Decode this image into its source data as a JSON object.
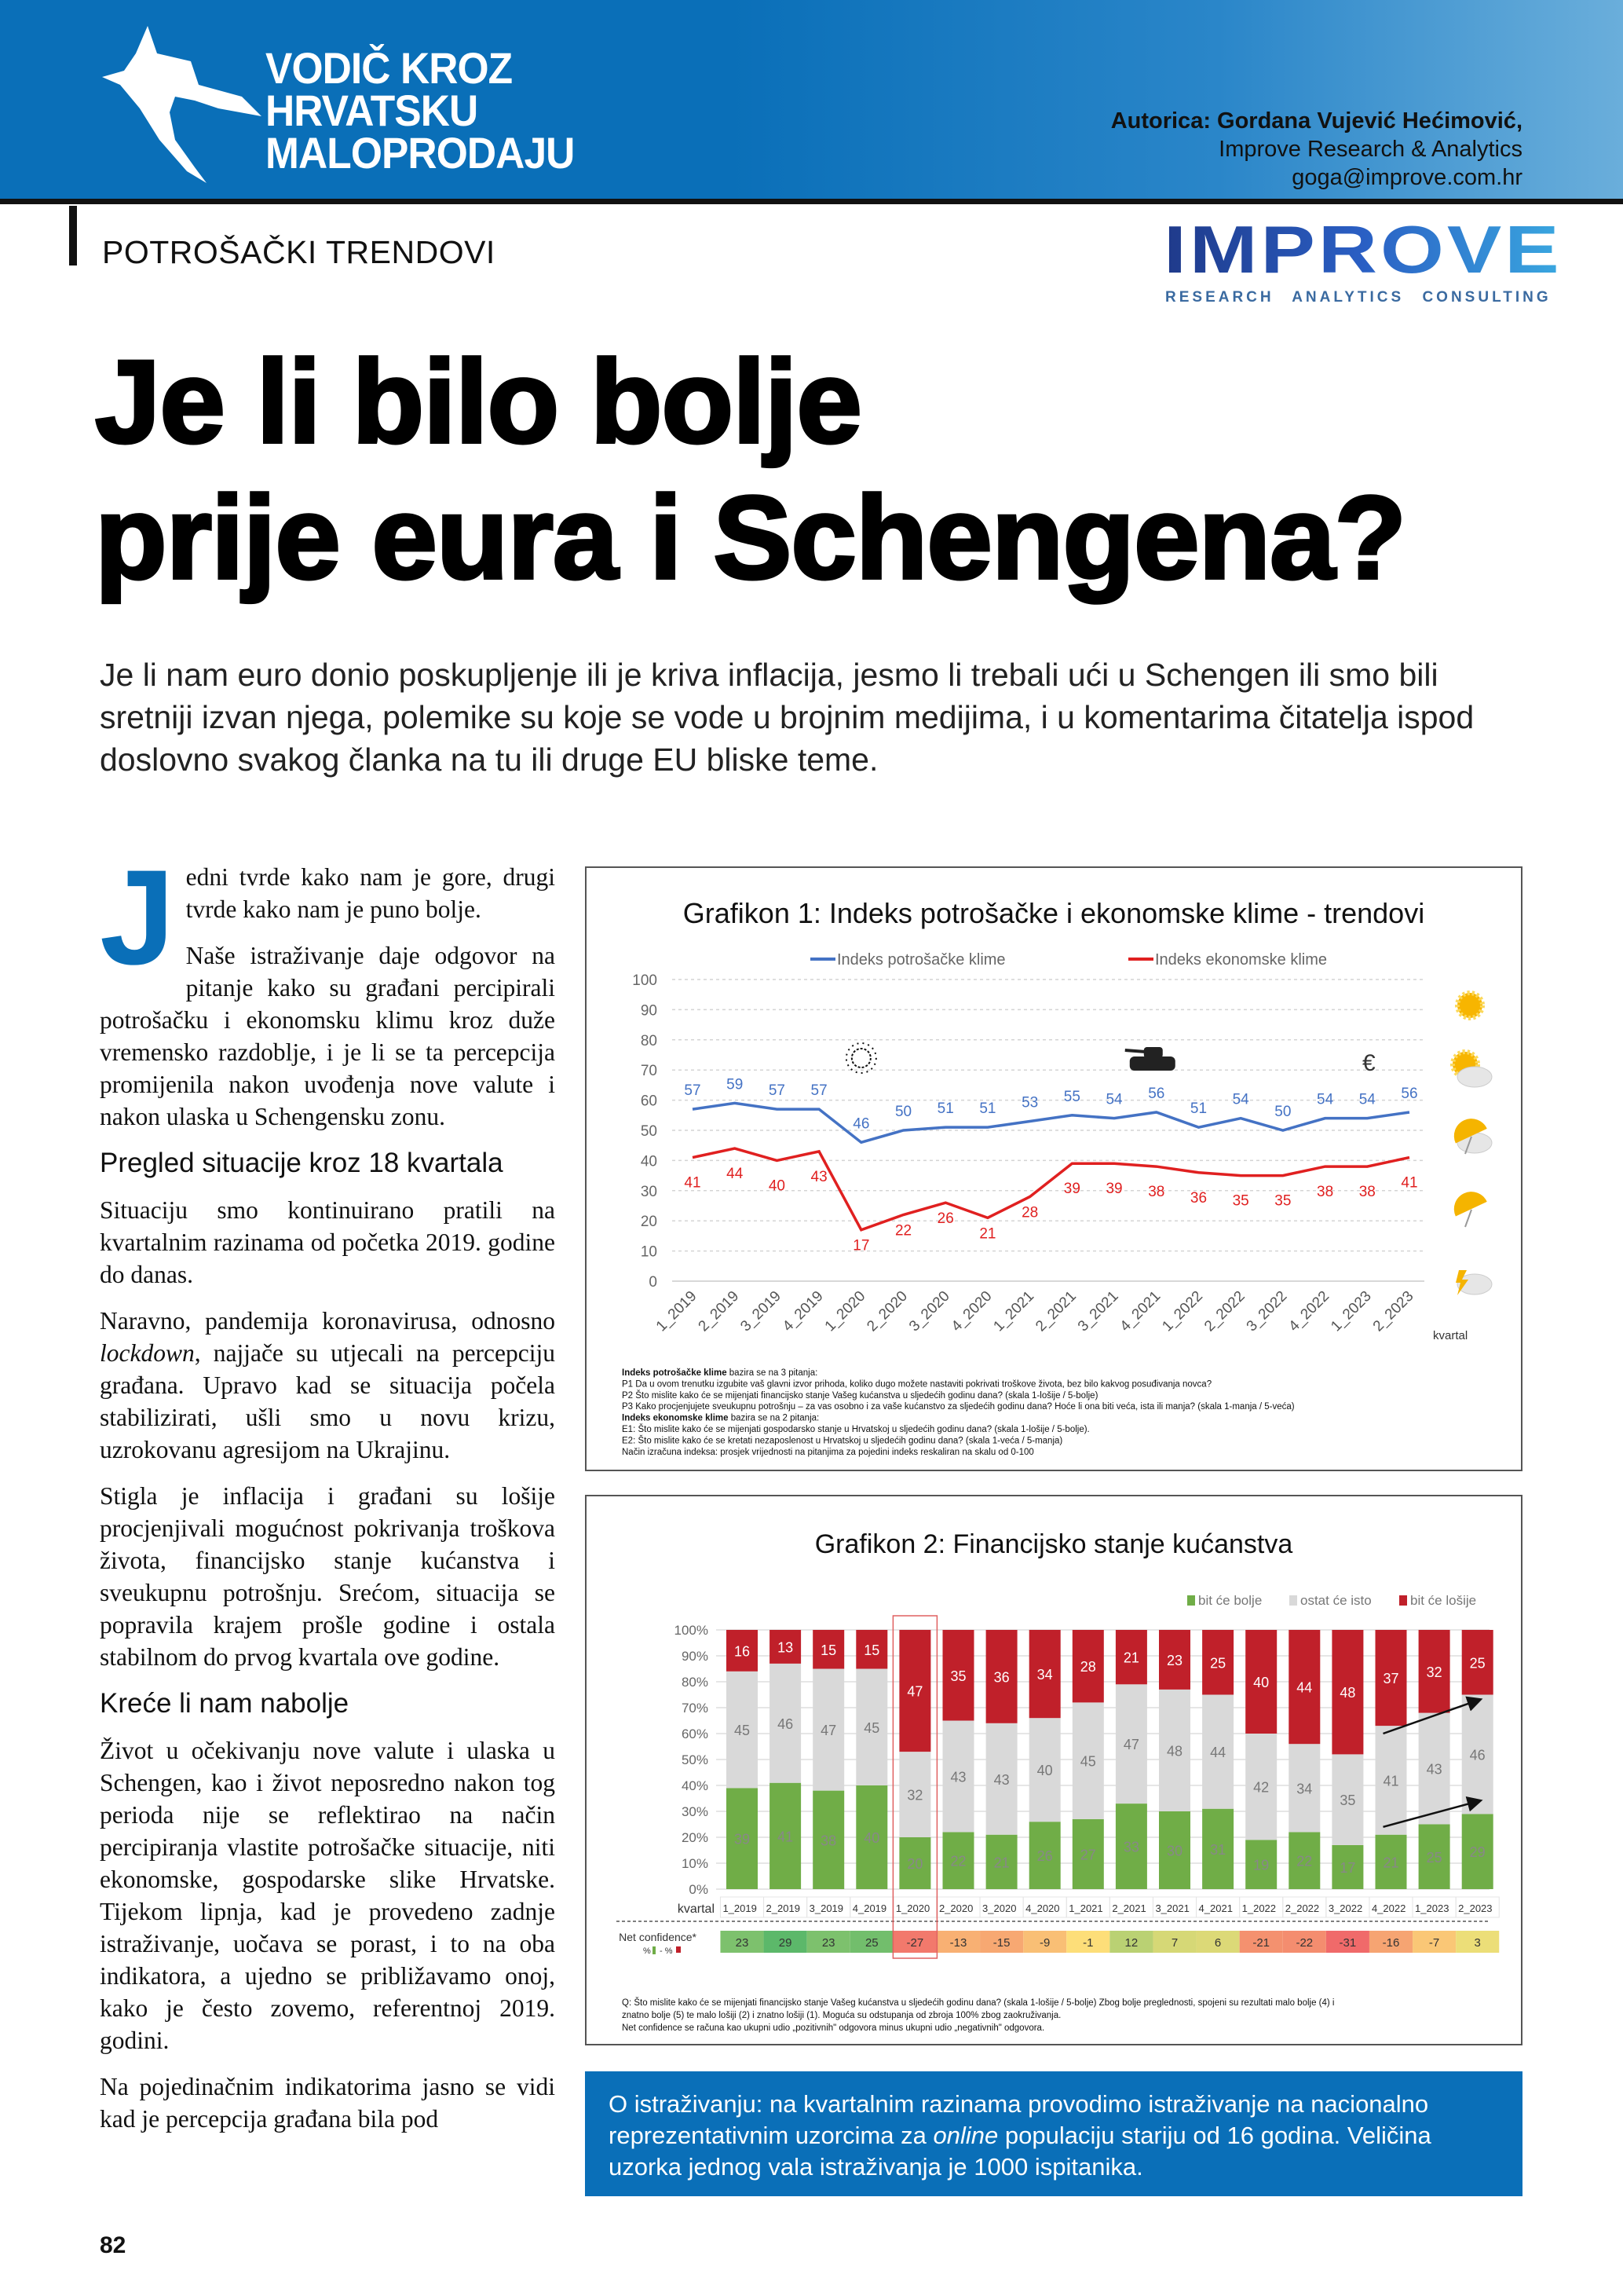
{
  "header": {
    "logo_lines": [
      "VODIČ KROZ",
      "HRVATSKU",
      "MALOPRODAJU"
    ],
    "author_name": "Autorica: Gordana Vujević Hećimović,",
    "author_org": "Improve Research & Analytics",
    "author_email": "goga@improve.com.hr",
    "brand_color": "#0a6fb8"
  },
  "section_label": "POTROŠAČKI TRENDOVI",
  "improve_logo": {
    "word": "IMPROVE",
    "tagline": "RESEARCH ANALYTICS CONSULTING"
  },
  "title": {
    "line1": "Je li bilo bolje",
    "line2": "prije eura i Schengena?"
  },
  "lead": "Je li nam euro donio poskupljenje ili je kriva inflacija, jesmo li trebali ući u Schengen ili smo bili sretniji izvan njega, polemike su koje se vode u brojnim medijima, i u komentarima čitatelja ispod doslovno svakog članka na tu ili druge EU bliske teme.",
  "article": {
    "dropcap": "J",
    "p1": "edni tvrde kako nam je gore, drugi tvrde kako nam je puno bolje.",
    "p2": "Naše istraživanje daje odgovor na pitanje kako su građani percipirali potrošačku i ekonomsku klimu kroz duže vremensko razdoblje, i je li se ta percepcija promijenila nakon uvođenja nove valute i nakon ulaska u Schengensku zonu.",
    "h1": "Pregled situacije kroz 18 kvartala",
    "p3": "Situaciju smo kontinuirano pratili na kvartalnim razinama od početka 2019. godine do danas.",
    "p4a": "Naravno, pandemija koronavirusa, odnosno ",
    "p4b": "lockdown",
    "p4c": ", najjače su utjecali na percepciju građana. Upravo kad se situacija počela stabilizirati, ušli smo u novu krizu, uzrokovanu agresijom na Ukrajinu.",
    "p5": "Stigla je inflacija i građani su lošije procjenjivali mogućnost pokrivanja troškova života, financijsko stanje kućanstva i sveukupnu potrošnju. Srećom, situacija se popravila krajem prošle godine i ostala stabilnom do prvog kvartala ove godine.",
    "h2": "Kreće li nam nabolje",
    "p6": "Život u očekivanju nove valute i ulaska u Schengen, kao i život neposredno nakon tog perioda nije se reflektirao na način percipiranja vlastite potrošačke situacije, niti ekonomske, gospodarske slike Hrvatske. Tijekom lipnja, kad je provedeno zadnje istraživanje, uočava se porast, i to na oba indikatora, a ujedno se približavamo onoj, kako je često zovemo, referentnoj 2019. godini.",
    "p7": "Na pojedinačnim indikatorima jasno se vidi kad je percepcija građana bila pod"
  },
  "info_box": {
    "a": "O istraživanju: na kvartalnim razinama provodimo istraživanje na nacionalno reprezentativnim uzorcima za ",
    "b": "online",
    "c": " populaciju stariju od 16 godina. Veličina uzorka jednog vala istraživanja je 1000 ispitanika."
  },
  "page_number": "82",
  "chart_data": [
    {
      "type": "line",
      "title": "Grafikon 1: Indeks potrošačke i ekonomske klime - trendovi",
      "xlabel": "kvartal",
      "ylim": [
        0,
        100
      ],
      "yticks": [
        0,
        10,
        20,
        30,
        40,
        50,
        60,
        70,
        80,
        90,
        100
      ],
      "grid": true,
      "legend": "top",
      "categories": [
        "1_2019",
        "2_2019",
        "3_2019",
        "4_2019",
        "1_2020",
        "2_2020",
        "3_2020",
        "4_2020",
        "1_2021",
        "2_2021",
        "3_2021",
        "4_2021",
        "1_2022",
        "2_2022",
        "3_2022",
        "4_2022",
        "1_2023",
        "2_2023"
      ],
      "series": [
        {
          "name": "Indeks potrošačke klime",
          "color": "#4472c4",
          "values": [
            57,
            59,
            57,
            57,
            46,
            50,
            51,
            51,
            53,
            55,
            54,
            56,
            51,
            54,
            50,
            54,
            54,
            56
          ]
        },
        {
          "name": "Indeks ekonomske klime",
          "color": "#e02020",
          "values": [
            41,
            44,
            40,
            43,
            17,
            22,
            26,
            21,
            28,
            39,
            39,
            38,
            36,
            35,
            35,
            38,
            38,
            41
          ]
        }
      ],
      "annotations": [
        {
          "icon": "virus-icon",
          "at": "1_2020"
        },
        {
          "icon": "tank-icon",
          "at": "4_2021"
        },
        {
          "icon": "euro-icon",
          "at": "1_2023",
          "text": "€"
        }
      ],
      "side_icons": [
        "sun-icon",
        "sun-cloud-icon",
        "rain-umbrella-icon",
        "umbrella-icon",
        "storm-cloud-icon"
      ],
      "notes": [
        {
          "bold": "Indeks potrošačke klime",
          "text": " bazira se na 3 pitanja:"
        },
        {
          "bold": "",
          "text": "P1 Da u ovom trenutku izgubite vaš glavni izvor prihoda, koliko dugo možete nastaviti pokrivati troškove života, bez bilo kakvog posuđivanja novca?"
        },
        {
          "bold": "",
          "text": "P2 Što mislite kako će se mijenjati financijsko stanje Vašeg kućanstva u sljedećih godinu dana? (skala 1-lošije / 5-bolje)"
        },
        {
          "bold": "",
          "text": "P3 Kako procjenjujete sveukupnu potrošnju – za vas osobno i za vaše kućanstvo za sljedećih godinu dana? Hoće li ona biti veća, ista ili manja? (skala 1-manja / 5-veća)"
        },
        {
          "bold": "Indeks ekonomske klime",
          "text": " bazira se na 2 pitanja:"
        },
        {
          "bold": "",
          "text": "E1: Što mislite kako će se mijenjati gospodarsko stanje u Hrvatskoj u sljedećih godinu dana? (skala 1-lošije / 5-bolje)."
        },
        {
          "bold": "",
          "text": "E2: Što mislite kako će se kretati nezaposlenost u Hrvatskoj u sljedećih godinu dana? (skala 1-veća / 5-manja)"
        },
        {
          "bold": "",
          "text": "Način izračuna indeksa: prosjek vrijednosti na pitanjima za pojedini indeks reskaliran na skalu od 0-100"
        }
      ]
    },
    {
      "type": "bar",
      "stacked": true,
      "title": "Grafikon 2: Financijsko stanje kućanstva",
      "xlabel": "kvartal",
      "ylim": [
        0,
        100
      ],
      "yticks": [
        "0%",
        "10%",
        "20%",
        "30%",
        "40%",
        "50%",
        "60%",
        "70%",
        "80%",
        "90%",
        "100%"
      ],
      "grid": true,
      "legend": "top-right",
      "highlight": "1_2020",
      "categories": [
        "1_2019",
        "2_2019",
        "3_2019",
        "4_2019",
        "1_2020",
        "2_2020",
        "3_2020",
        "4_2020",
        "1_2021",
        "2_2021",
        "3_2021",
        "4_2021",
        "1_2022",
        "2_2022",
        "3_2022",
        "4_2022",
        "1_2023",
        "2_2023"
      ],
      "series": [
        {
          "name": "bit će bolje",
          "color": "#70ad47",
          "values": [
            39,
            41,
            38,
            40,
            20,
            22,
            21,
            26,
            27,
            33,
            30,
            31,
            19,
            22,
            17,
            21,
            25,
            29
          ]
        },
        {
          "name": "ostat će isto",
          "color": "#d9d9d9",
          "values": [
            45,
            46,
            47,
            45,
            32,
            43,
            43,
            40,
            45,
            47,
            48,
            44,
            42,
            34,
            35,
            41,
            43,
            46
          ]
        },
        {
          "name": "bit će lošije",
          "color": "#c0202a",
          "values": [
            16,
            13,
            15,
            15,
            47,
            35,
            36,
            34,
            28,
            21,
            23,
            25,
            40,
            44,
            48,
            37,
            32,
            25
          ]
        }
      ],
      "net_confidence": {
        "label": "Net confidence*",
        "sublabel_a": "%",
        "sublabel_b": "- %",
        "values": [
          23,
          29,
          23,
          25,
          -27,
          -13,
          -15,
          -9,
          -1,
          12,
          7,
          6,
          -21,
          -22,
          -31,
          -16,
          -7,
          3
        ],
        "color_scale": {
          "low": "#f06a6a",
          "mid": "#fde27a",
          "high": "#5cb86a"
        }
      },
      "notes": [
        "Q: Što mislite kako će se mijenjati financijsko stanje Vašeg kućanstva u sljedećih godinu dana? (skala 1-lošije / 5-bolje) Zbog bolje preglednosti, spojeni su rezultati malo bolje (4) i",
        "znatno bolje (5) te malo lošiji (2) i znatno lošiji (1). Moguća su odstupanja od zbroja 100% zbog zaokruživanja.",
        "Net confidence se računa kao ukupni udio „pozitivnih\" odgovora minus ukupni udio „negativnih\" odgovora."
      ]
    }
  ]
}
